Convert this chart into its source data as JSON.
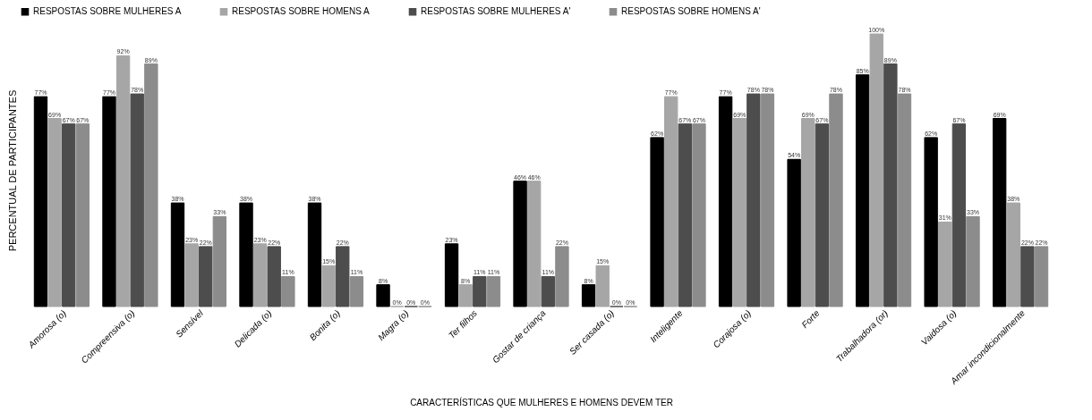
{
  "chart_data": {
    "type": "bar",
    "xlabel": "CARACTERÍSTICAS QUE MULHERES E HOMENS DEVEM TER",
    "ylabel": "PERCENTUAL DE PARTICIPANTES",
    "legend": "top",
    "categories": [
      "Amorosa (o)",
      "Compreensiva (o)",
      "Sensível",
      "Delicada (o)",
      "Bonita (o)",
      "Magra (o)",
      "Ter filhos",
      "Gostar de criança",
      "Ser casada (o)",
      "Inteligente",
      "Corajosa (o)",
      "Forte",
      "Trabalhadora (or)",
      "Vaidosa (o)",
      "Amar incondicionalmente"
    ],
    "series": [
      {
        "name": "RESPOSTAS SOBRE MULHERES A",
        "color": "#000000",
        "values": [
          77,
          77,
          38,
          38,
          38,
          8,
          23,
          46,
          8,
          62,
          77,
          54,
          85,
          62,
          69
        ],
        "value_labels": [
          "77%",
          "77%",
          "38%",
          "38%",
          "38%",
          "8%",
          "23%",
          "46%",
          "8%",
          "62%",
          "77%",
          "54%",
          "85%",
          "62%",
          "69%"
        ]
      },
      {
        "name": "RESPOSTAS SOBRE HOMENS A",
        "color": "#a6a6a6",
        "values": [
          69,
          92,
          23,
          23,
          15,
          0,
          8,
          46,
          15,
          77,
          69,
          69,
          100,
          31,
          38
        ],
        "value_labels": [
          "69%",
          "92%",
          "23%",
          "23%",
          "15%",
          "0%",
          "8%",
          "46%",
          "15%",
          "77%",
          "69%",
          "69%",
          "100%",
          "31%",
          "38%"
        ]
      },
      {
        "name": "RESPOSTAS SOBRE MULHERES A'",
        "color": "#4d4d4d",
        "values": [
          67,
          78,
          22,
          22,
          22,
          0,
          11,
          11,
          0,
          67,
          78,
          67,
          89,
          67,
          22
        ],
        "value_labels": [
          "67%",
          "78%",
          "22%",
          "22%",
          "22%",
          "0%",
          "11%",
          "11%",
          "0%",
          "67%",
          "78%",
          "67%",
          "89%",
          "67%",
          "22%"
        ]
      },
      {
        "name": "RESPOSTAS SOBRE HOMENS A'",
        "color": "#8c8c8c",
        "values": [
          67,
          89,
          33,
          11,
          11,
          0,
          11,
          22,
          0,
          67,
          78,
          78,
          78,
          33,
          22
        ],
        "value_labels": [
          "67%",
          "89%",
          "33%",
          "11%",
          "11%",
          "0%",
          "11%",
          "22%",
          "0%",
          "67%",
          "78%",
          "78%",
          "78%",
          "33%",
          "22%"
        ]
      }
    ]
  }
}
